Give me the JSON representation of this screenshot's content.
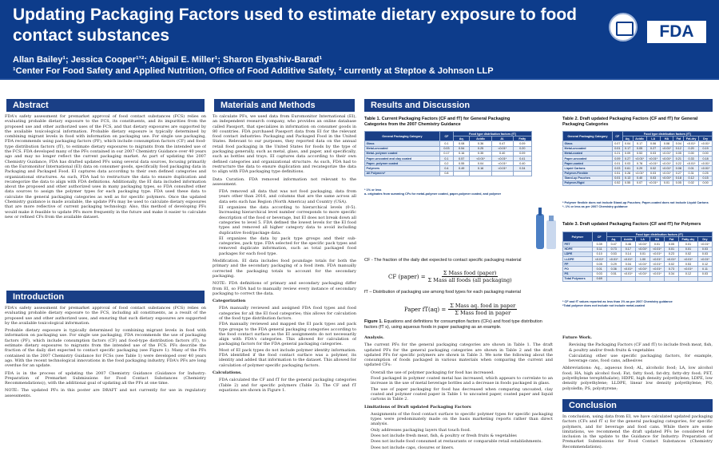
{
  "header": {
    "title": "Updating Packaging Factors used to estimate dietary exposure to food contact substances",
    "authors": "Allan Bailey¹; Jessica Cooper¹ʼ²; Abigail E. Miller¹; Sharon Elyashiv-Barad¹",
    "affiliation": "¹Center For Food Safety and Applied Nutrition, Office of Food Additive Safety, ² currently at Steptoe & Johnson LLP",
    "logo_fda": "FDA"
  },
  "abstract": {
    "heading": "Abstract",
    "text": "FDA's safety assessment for premarket approval of food contact substances (FCS) relies on evaluating probable dietary exposure to the FCS, its constituents, and its impurities from the proposed use and other authorized uses of the FCS, and that dietary exposures are supported by the available toxicological information. Probable dietary exposure is typically determined by combining migrant levels in food with information on packaging use. For single use packaging, FDA recommends using packaging factors (PF), which include consumption factors (CF) and food-type distribution factors (fT), to estimate dietary exposures to migrants from the intended use of the FCS. FDA developed many of the PFs contained in our 2007 Chemistry Guidance over 40 years ago and may no longer reflect the current packaging market. As part of updating the 2007 Chemistry Guidance, FDA has drafted updated PFs using several data sources, focusing primarily on the Euromonitor International (EI) data on consumer goods, specifically food packaging data in Packaging and Packaged Food. EI captures data according to their own defined categories and organizational structures. As such, FDA had to restructure the data to ensure duplication and recategorize the data to align with FDA definitions. Additionally, the EI data included information about the proposed and other authorized uses in many packaging types, so FDA consulted other data sources to assign the polymer types for each packaging type. FDA used these data to calculate the general packaging categories as well as for specific polymers. Once the updated Chemistry guidance is made available, the update PFs may be used to calculate dietary exposures that are more reflective of current packaging technology. Also, this method of developing PFs would make it feasible to update PFs more frequently in the future and make it easier to calculate new or refined CFs from the available dataset."
  },
  "introduction": {
    "heading": "Introduction",
    "p1": "FDA's safety assessment for premarket approval of food contact substances (FCS) relies on evaluating probable dietary exposure to the FCS, including all constituents, as a result of the proposed use and other authorized uses, and ensuring that such dietary exposures are supported by the available toxicological information.",
    "p2": "Probable dietary exposure is typically determined by combining migrant levels in food with information on packaging use. For single use packaging, FDA recommends the use of packaging factors (PF), which include consumption factors (CF) and food-type distribution factors (fT), to estimate dietary exposures to migrants from the intended use of the FCS. PFs describe the fraction of the daily diet expected to contact specific packaging (see Figure 1). Many of the PFs contained in the 2007 Chemistry Guidance for FCSs (see Table 1) were developed over 40 years ago. With the recent technological innovations in the food packaging industry, FDA's PFs are long overdue for an update.",
    "p3": "FDA is in the process of updating the 2007 Chemistry Guidance (Guidance for Industry: Preparation of Premarket Submissions for Food Contact Substances (Chemistry Recommendations)), with the additional goal of updating all the PFs at one time.",
    "p4": "NOTE: The updated PFs in this poster are DRAFT and not currently for use in regulatory assessments."
  },
  "methods": {
    "heading": "Materials and Methods",
    "p1": "To calculate PFs, we used data from Euromonitor International (EI), an independent research company, who provides an online database called Passport, that specializes in information on consumer goods in 80 countries. FDA purchased Passport data from EI for the relevant food contact industries: Packaging and Packaged Food in the United States. Relevant to our purposes, they reported data on the annual retail food packaging in the United States for foods by the type of packaging generally, such as metal, glass, and paper, and specifically, such as bottles and trays. EI captures data according to their own defined categories and organizational structure. As such, FDA had to restructure the data to ensure duplication and recategorize the data to align with FDA packaging type definitions.",
    "p2": "Data Curation. FDA removed information not relevant to the assessment.",
    "bullets1": [
      "FDA removed all data that was not food packaging, data from years other than 2016, and columns that are the same across all data sets such has Region (North America) and Country (USA).",
      "EI organizes the data according to hierarchical levels (0-5). Increasing hierarchical level number corresponds to more specific description of the food or beverage, but EI does not break down all categories to level 5. FDA defined the lowest levels for the EI food types and removed all higher category data to avoid including duplicative food/package data.",
      "EI organizes the data by pack type groups and their sub-categories, pack type. FDA selected for the specific pack types and removed duplicate information, such as total packaged food packages for each food type."
    ],
    "p3": "Modification. EI data includes food poundage totals for both the primary and the secondary packaging of a food item. FDA manually corrected the packaging totals to account for the secondary packaging.",
    "p4": "NOTE: FDA definitions of primary and secondary packaging differ from EI, so FDA had to manually review every instance of secondary packaging to correct the data.",
    "p5": "Categorization",
    "bullets2": [
      "FDA manually reviewed and assigned FDA food types and food categories for all the EI food categories; this allows for calculation of the food type distribution factors.",
      "FDA manually reviewed and mapped the EI pack types and pack type groups to the FDA general packaging categories according to the food contact surface as the EI assignments do not necessarily align with FDA's categories. This allowed for calculation of packaging factors for the FDA general packaging categories.",
      "Most of EI pack types do not include polymer identity information. FDA identified if the food contact surface was a polymer, its identity and added that information to the dataset. This allowed for calculation of polymer specific packaging factors."
    ],
    "p6": "Calculations.",
    "bullets3": [
      "FDA calculated the CF and fT for the general packaging categories (Table 2) and for specific polymers (Table 3). The CF and fT equations are shown in Figure 1."
    ]
  },
  "results": {
    "heading": "Results and Discussion",
    "table1_caption": "Table 1. Current Packaging Factors (CF and fT) for General Packaging Categories from the 2007 Chemistry Guidance",
    "table1": {
      "col_cat": "General Packaging Category",
      "col_cf": "CF",
      "col_group": "Food type distribution factors (fT)",
      "sub": [
        "Aq.",
        "Acidic",
        "Al.",
        "Fatty"
      ],
      "rows": [
        [
          "Glass",
          "0.1",
          "0.08",
          "0.36",
          "0.47",
          "0.09"
        ],
        [
          "Metal-uncoated",
          "0.03",
          "0.54",
          "0.25",
          "<0.01*",
          "0.20"
        ],
        [
          "Metal- polymer coated",
          "0.17",
          "0.16",
          "0.35",
          "0.40",
          "0.09"
        ],
        [
          "Paper-uncoated and clay coated",
          "0.1",
          "0.57",
          "<0.01*",
          "<0.01*",
          "0.41"
        ],
        [
          "Paper- polymer coated",
          "0.2",
          "0.55",
          "0.04",
          "<0.01*",
          "0.40"
        ],
        [
          "Polymers",
          "0.4",
          "0.49",
          "0.16",
          "<0.01*",
          "0.34"
        ],
        [
          "All Polymers*",
          "0.8",
          "",
          "",
          "",
          ""
        ]
      ],
      "notes": [
        "* 1% or less",
        "a- originates from summing CFs for metal-polymer coated, paper-polymer coated, and polymer"
      ]
    },
    "fig1_cf_label": "CF - The fraction of the daily diet expected to contact specific packaging material",
    "eq1_lhs": "CF (paper) =",
    "eq1_num": "Σ Mass food (paper)",
    "eq1_den": "Σ Mass all foods (all packaging)",
    "fig1_ft_label": "fT – Distribution of packaging use among food types for each packaging material",
    "eq2_lhs": "Paper fT(aq) =",
    "eq2_num": "Σ Mass aq. food in paper",
    "eq2_den": "Σ Mass food in paper",
    "fig1_caption_bold": "Figure 1.",
    "fig1_caption": "Equations and definitions for consumption factors (CFs) and food type distribution factors (fT s), using aqueous foods in paper packaging as an example.",
    "analysis_heading": "Analysis.",
    "analysis_p": "The current PFs for the general packaging categories are shown in Table 1. The draft updated PFs for the general packaging categories are shown in Table 2 and the draft updated PFs for specific polymers are shown in Table 3. We note the following about the consumption of foods packaged in various materials when comparing the current and updated CFs:",
    "analysis_bullets": [
      "Overall the use of polymer packaging for food has increased.",
      "Food packaged in polymer coated metal has increased, which appears to correlate to an increase in the use of metal beverage bottles and a decrease in foods packaged in glass.",
      "The use of paper packaging for food has decreased when comparing uncoated, clay coated and polymer coated paper in Table 1 to uncoated paper, coated paper and liquid cartons in Table 2."
    ],
    "limitations_heading": "Limitations of Draft updated Packaging Factors",
    "limitations_bullets": [
      "Assignments of the food contact surface to specific polymer types for specific packaging types were predominately made on the basis marketing reports rather than direct analysis.",
      "Only addresses packaging layers that touch food.",
      "Does not include fresh meat, fish, & poultry or fresh fruits & vegetables",
      "Does not include food consumed at restaurants or comparable retail establishments.",
      "Does not include caps, closures or liners."
    ],
    "table2_caption": "Table 2. Draft updated Packaging Factors (CF and fT) for General Packaging Categories",
    "table2": {
      "col_cat": "General Packaging Category",
      "col_cf": "CF",
      "col_group": "Food type distribution factors (fT)",
      "sub": [
        "Aq.",
        "Acidic",
        "LA",
        "HA",
        "Fat",
        "Fat-dry",
        "Dry"
      ],
      "rows": [
        [
          "Glass",
          "0.07",
          "0.04",
          "0.17",
          "0.06",
          "0.08",
          "0.04",
          "<0.01*",
          "<0.01*"
        ],
        [
          "Metal-uncoated",
          "0.01",
          "0.17",
          "0.05",
          "0.27",
          "<0.01*",
          "0.12",
          "0.20",
          "0.19"
        ],
        [
          "Metal-coated",
          "0.21",
          "0.09",
          "0.53",
          "0.03",
          "<0.01*",
          "0.05",
          "0.00",
          "0.00"
        ],
        [
          "Paper-uncoated",
          "0.09",
          "0.27",
          "<0.01*",
          "<0.01*",
          "<0.01*",
          "0.21",
          "0.33",
          "0.18"
        ],
        [
          "Paper-coated",
          "0.01",
          "0.03",
          "0.78",
          "<0.01*",
          "<0.01*",
          "0.22",
          "<0.01*",
          "<0.01*"
        ],
        [
          "Liquid Cartons",
          "0.03",
          "0.61",
          "0.29",
          "0.02",
          "<0.01*",
          "0.08",
          "0.01",
          "<0.01*"
        ],
        [
          "Polymer-Flexible",
          "0.51",
          "0.28",
          "<0.01*",
          "0.03",
          "<0.01*",
          "0.27",
          "0.31",
          "0.25"
        ],
        [
          "Stand-up Pouches",
          "0.01",
          "0.13",
          "0.40",
          "0.03",
          "<0.01*",
          "0.18",
          "0.12",
          "0.15"
        ],
        [
          "Polymer-Rigid",
          "0.52",
          "0.55",
          "0.07",
          "<0.01*",
          "0.01",
          "0.05",
          "0.02",
          "0.00"
        ]
      ],
      "notes": [
        "* Polymer flexible does not include Stand-up Pouches; Paper-coated does not include Liquid Cartons",
        "*- 1% or less as per 2007 Chemistry guidance"
      ]
    },
    "table3_caption": "Table 3. Draft updated Packaging Factors (CF and fT) for Polymers",
    "table3": {
      "col_cat": "Polymer",
      "col_cf": "CF",
      "col_group": "Food type distribution factors (fT)",
      "sub": [
        "Aq.",
        "Acidic",
        "LA",
        "HA",
        "Fat",
        "Fatty-dry",
        "Dry"
      ],
      "rows": [
        [
          "PET",
          "0.39",
          "0.47",
          "0.46",
          "<0.01*",
          "0.01",
          "0.05",
          "0.01",
          "<0.01*"
        ],
        [
          "HDPE",
          "0.11",
          "0.73",
          "0.17",
          "<0.01*",
          "<0.01*",
          "0.01",
          "0.01",
          "0.03"
        ],
        [
          "LDPE",
          "0.10",
          "0.53",
          "0.14",
          "0.01",
          "<0.01*",
          "0.23",
          "0.02",
          "0.03"
        ],
        [
          "LLDPE",
          "<0.01*",
          "<0.01*",
          "<0.01*",
          "1.00",
          "<0.01*",
          "<0.01*",
          "<0.01*",
          "<0.01*"
        ],
        [
          "PP",
          "0.05",
          "0.29",
          "0.04",
          "<0.01*",
          "<0.01*",
          "0.02",
          "0.53",
          "0.12"
        ],
        [
          "PO",
          "0.01",
          "0.36",
          "<0.01*",
          "<0.01*",
          "<0.01*",
          "0.73",
          "<0.01*",
          "0.11"
        ],
        [
          "PS",
          "0.03",
          "0.51",
          "<0.01*",
          "<0.01*",
          "<0.01*",
          "0.34",
          "0.12",
          "0.03"
        ],
        [
          "Total Polymers",
          "0.69",
          "",
          "",
          "",
          "",
          "",
          "",
          ""
        ]
      ],
      "notes": [
        "* CF and fT values reported as less than 1% as per 2007 Chemistry guidance",
        "*Total polymer does not include not include metal-coated"
      ]
    },
    "future_heading": "Future Work.",
    "future_bullets": [
      "Revising the Packaging Factors (CF and fT) to include fresh meat, fish, & poultry and/or fresh fruits & vegetables",
      "Calculating other use specific packaging factors, for example, beverage cans, food cans, adhesives"
    ],
    "abbrev": "Abbreviations: Aq., aqueous food; AL, alcoholic food; LA, low alcohol food; HA, high alcohol food; Fat, fatty food; fat-dry, fatty-dry food; PET, polyethylene terephthalate); HDPE, high density polyethylene; LDPE, low density polyethylene; LLDPE, linear low density polyethylene; PO, polyolefin; PS, polystyrene;"
  },
  "conclusion": {
    "heading": "Conclusion",
    "text": "In conclusion, using data from EI, we have calculated updated packaging factors (CFs and fT s) for the general packaging categories, for specific polymers, and for beverage and food cans. While there are some limitations, we recommend the draft updated PFs be considered for inclusion in the update to the Guidance for Industry: Preparation of Premarket Submissions for Food Contact Substances (Chemistry Recommendations)."
  }
}
